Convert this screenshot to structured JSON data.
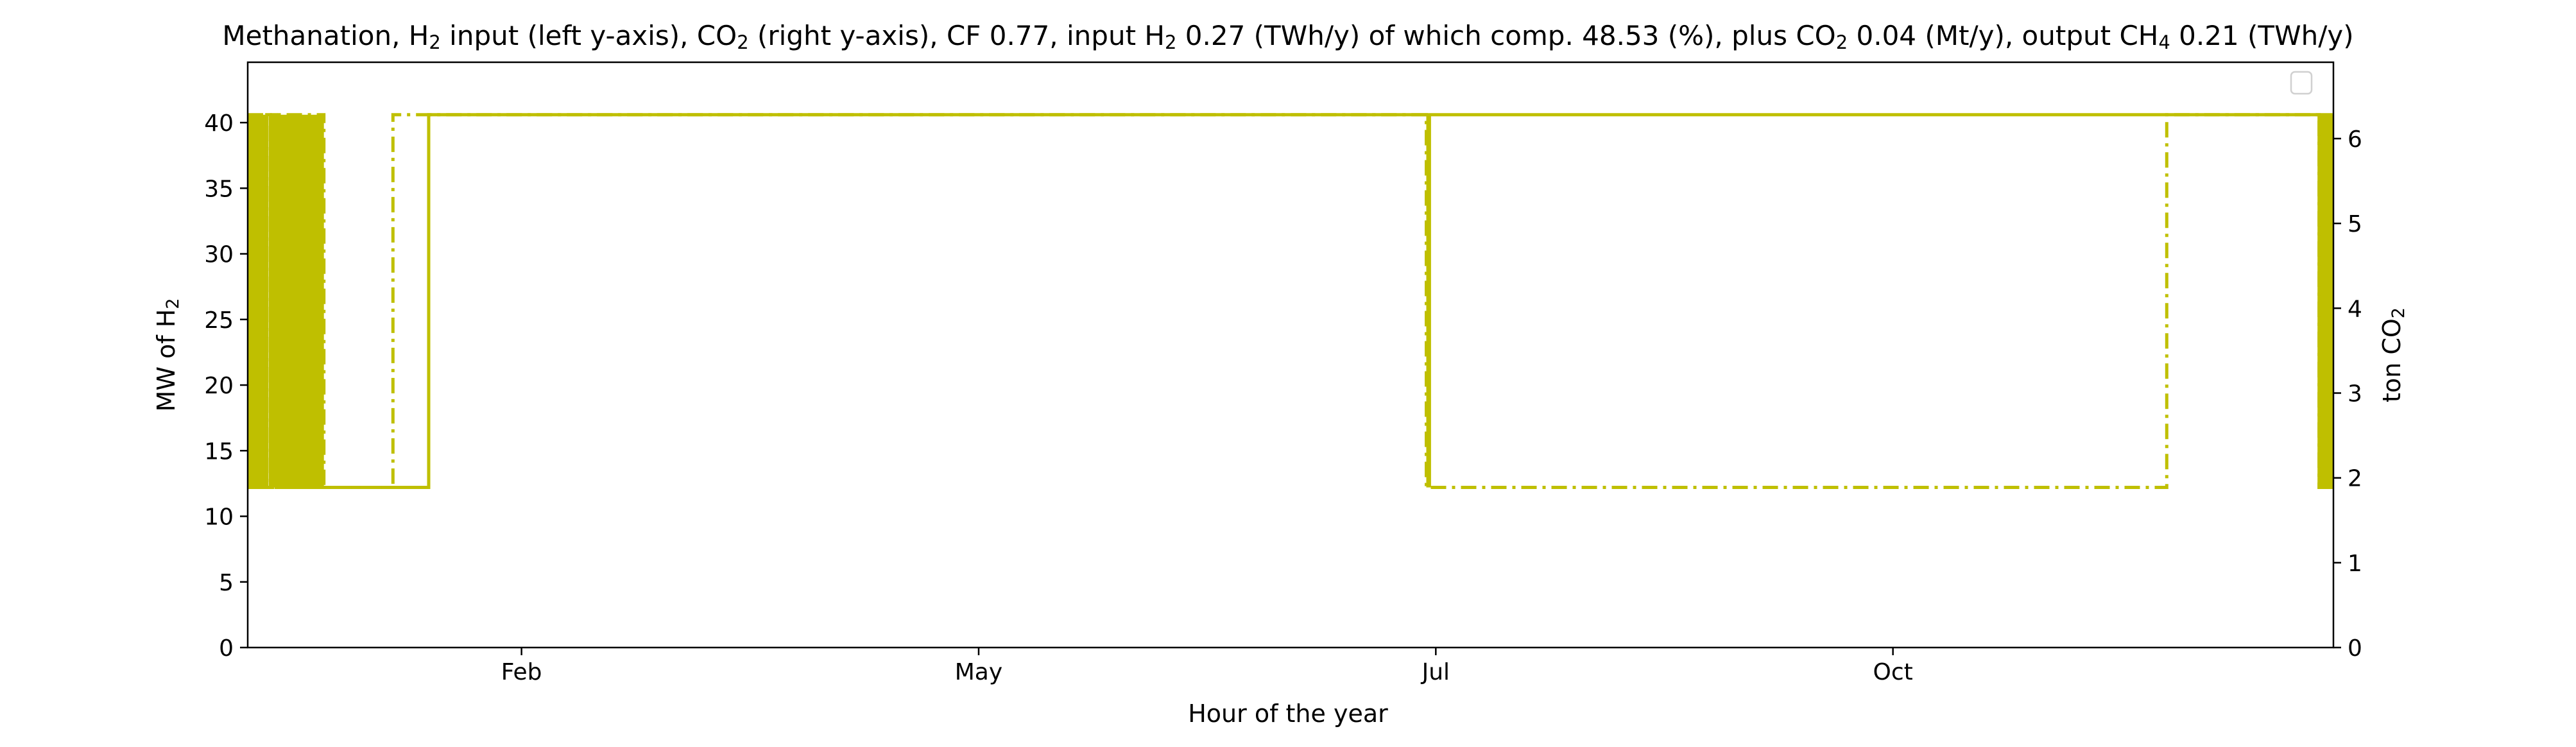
{
  "chart_data": {
    "type": "line",
    "title": {
      "parts": [
        {
          "t": "Methanation, H"
        },
        {
          "t": "2",
          "sub": true
        },
        {
          "t": " input (left y-axis), CO"
        },
        {
          "t": "2",
          "sub": true
        },
        {
          "t": " (right y-axis), CF 0.77, input H"
        },
        {
          "t": "2",
          "sub": true
        },
        {
          "t": " 0.27 (TWh/y) of which comp. 48.53 (%), plus CO"
        },
        {
          "t": "2",
          "sub": true
        },
        {
          "t": " 0.04 (Mt/y), output CH"
        },
        {
          "t": "4",
          "sub": true
        },
        {
          "t": " 0.21 (TWh/y)"
        }
      ]
    },
    "xlabel": "Hour of the year",
    "ylabel_left": {
      "parts": [
        {
          "t": "MW of H"
        },
        {
          "t": "2",
          "sub": true
        }
      ]
    },
    "ylabel_right": {
      "parts": [
        {
          "t": "ton CO"
        },
        {
          "t": "2",
          "sub": true
        }
      ]
    },
    "xlim": [
      0,
      8760
    ],
    "ylim_left": [
      0,
      44.6
    ],
    "ylim_right": [
      0,
      6.9
    ],
    "x_ticks": [
      {
        "label": "Feb",
        "value": 1150
      },
      {
        "label": "May",
        "value": 3070
      },
      {
        "label": "Jul",
        "value": 4990
      },
      {
        "label": "Oct",
        "value": 6910
      }
    ],
    "y_ticks_left": [
      0,
      5,
      10,
      15,
      20,
      25,
      30,
      35,
      40
    ],
    "y_ticks_right": [
      0,
      1,
      2,
      3,
      4,
      5,
      6
    ],
    "grid": false,
    "legend": {
      "placement": "top-right",
      "entries": []
    },
    "series": [
      {
        "axis": "left",
        "style": "solid",
        "color": "#bfbf00",
        "points": [
          [
            0,
            12.2
          ],
          [
            80,
            12.2
          ],
          [
            80,
            40.6
          ],
          [
            95,
            40.6
          ],
          [
            95,
            12.2
          ],
          [
            105,
            12.2
          ],
          [
            105,
            40.6
          ],
          [
            120,
            40.6
          ],
          [
            120,
            12.2
          ],
          [
            760,
            12.2
          ],
          [
            760,
            40.6
          ],
          [
            8700,
            40.6
          ],
          [
            8700,
            12.2
          ],
          [
            8712,
            12.2
          ],
          [
            8712,
            40.6
          ],
          [
            8725,
            40.6
          ],
          [
            8725,
            12.2
          ],
          [
            8737,
            12.2
          ],
          [
            8737,
            40.6
          ],
          [
            8750,
            40.6
          ],
          [
            8750,
            12.2
          ],
          [
            8760,
            12.2
          ]
        ],
        "dense_bands": [
          [
            0,
            80
          ],
          [
            100,
            320
          ],
          [
            4950,
            4970
          ],
          [
            8700,
            8760
          ]
        ]
      },
      {
        "axis": "left",
        "style": "dashdot",
        "color": "#bfbf00",
        "points": [
          [
            0,
            40.6
          ],
          [
            80,
            40.6
          ],
          [
            80,
            12.2
          ],
          [
            100,
            12.2
          ],
          [
            100,
            40.6
          ],
          [
            320,
            40.6
          ],
          [
            320,
            12.2
          ],
          [
            610,
            12.2
          ],
          [
            610,
            40.6
          ],
          [
            4950,
            40.6
          ],
          [
            4950,
            12.2
          ],
          [
            8060,
            12.2
          ],
          [
            8060,
            40.6
          ],
          [
            8700,
            40.6
          ],
          [
            8700,
            12.2
          ],
          [
            8760,
            12.2
          ]
        ]
      }
    ]
  }
}
